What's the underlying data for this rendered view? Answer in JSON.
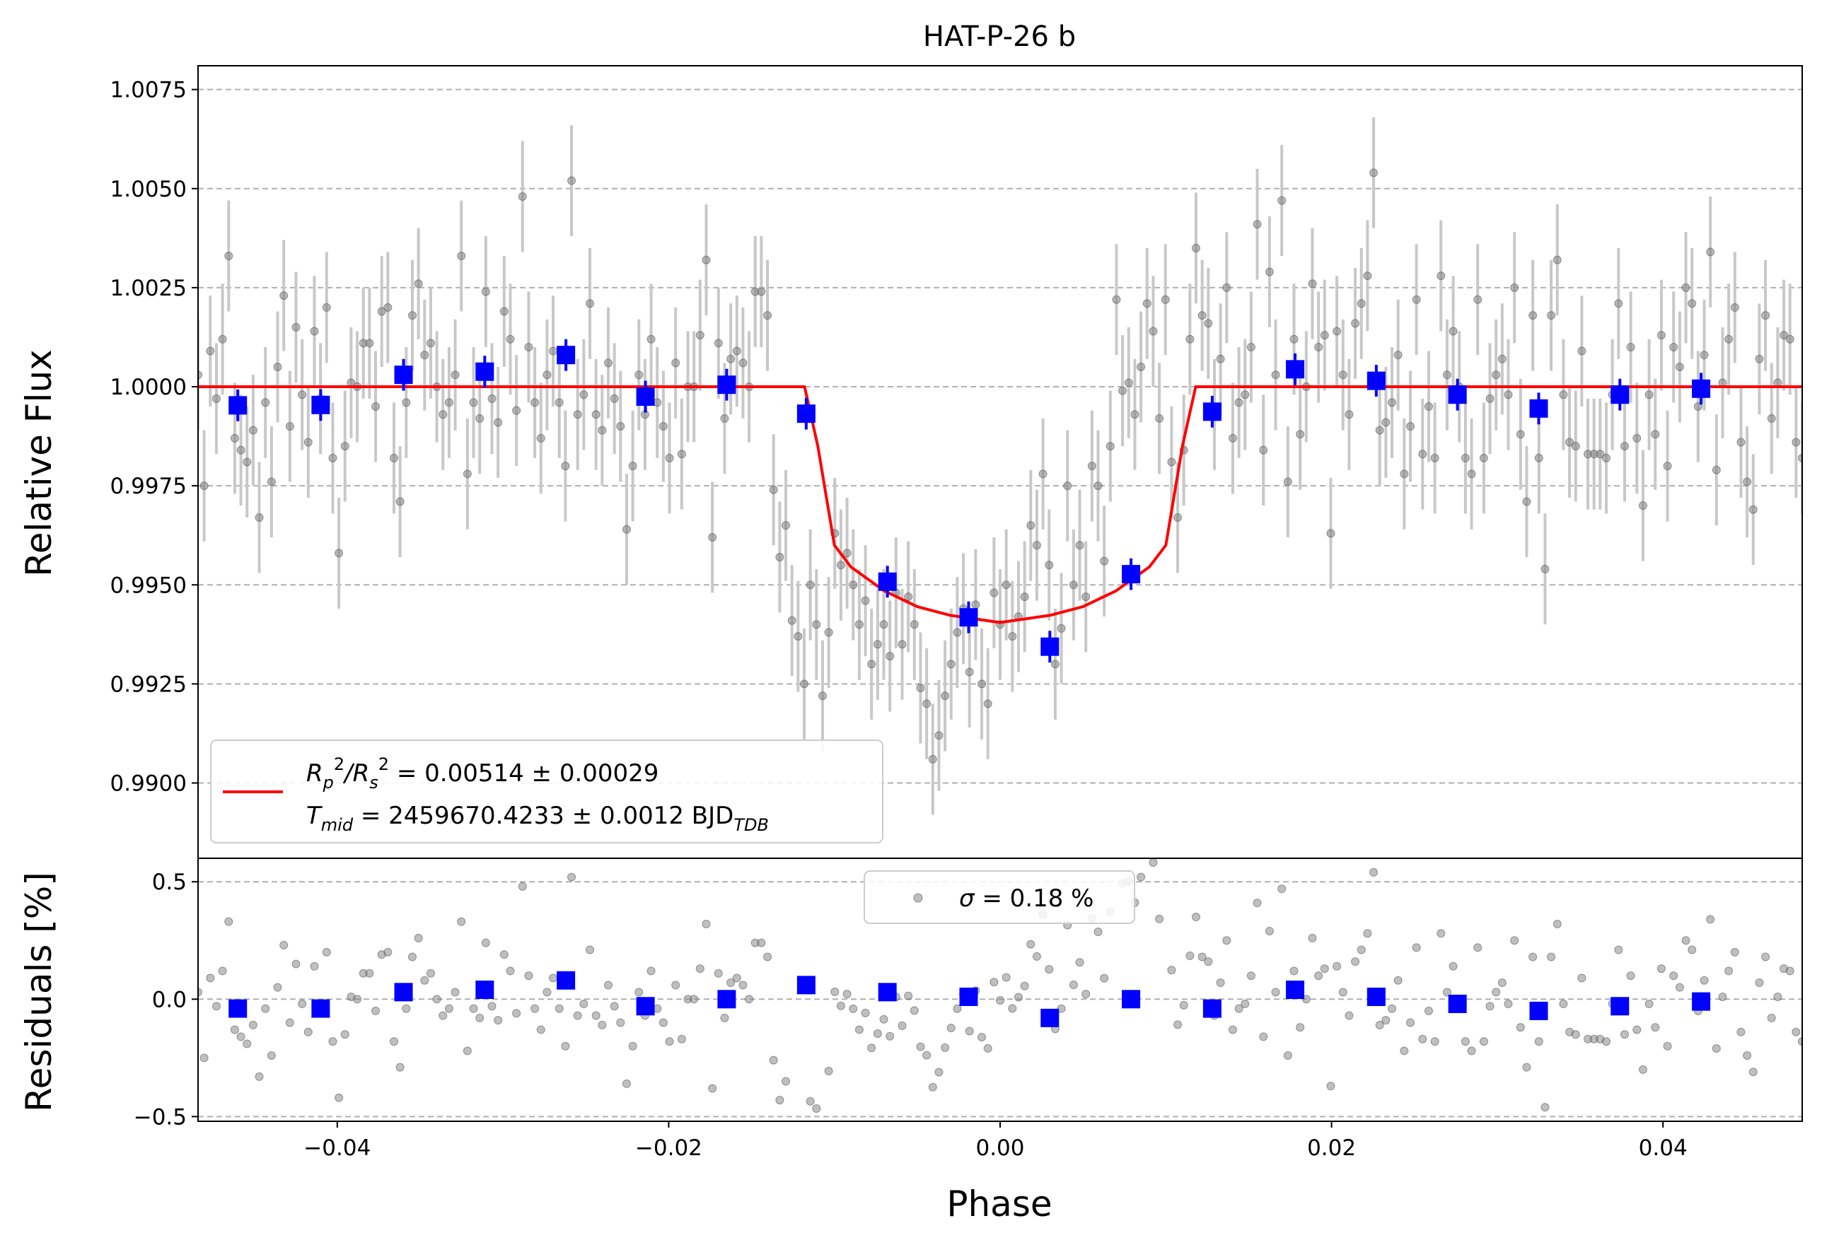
{
  "chart_data": [
    {
      "type": "scatter",
      "title": "HAT-P-26 b",
      "xlabel": "",
      "ylabel": "Relative Flux",
      "xlim": [
        -0.0484,
        0.0484
      ],
      "ylim": [
        0.9881,
        1.0081
      ],
      "grid": "horizontal dashed",
      "yticks": [
        "0.9900",
        "0.9925",
        "0.9950",
        "0.9975",
        "1.0000",
        "1.0025",
        "1.0050",
        "1.0075"
      ],
      "ytick_values": [
        0.99,
        0.9925,
        0.995,
        0.9975,
        1.0,
        1.0025,
        1.005,
        1.0075
      ],
      "legend": {
        "placement": "lower-left",
        "entries": [
          {
            "name": "R_p^2/R_s^2 = 0.00514 ± 0.00029",
            "color": "#ff0000"
          },
          {
            "name": "T_mid = 2459670.4233 ± 0.0012 BJD_TDB",
            "color": "#ff0000"
          }
        ],
        "line1": {
          "prefix": "R",
          "sub1": "p",
          "sup1": "2",
          "slash": "/R",
          "sub2": "s",
          "sup2": "2",
          "rest": " = 0.00514 ± 0.00029"
        },
        "line2": {
          "prefix": "T",
          "sub": "mid",
          "rest": " = 2459670.4233 ± 0.0012 BJD",
          "sub2": "TDB"
        }
      },
      "model": {
        "name": "transit model",
        "color": "#ff0000",
        "x": [
          -0.0484,
          -0.0118,
          -0.011,
          -0.01,
          -0.009,
          -0.007,
          -0.005,
          -0.003,
          0.0,
          0.003,
          0.005,
          0.007,
          0.009,
          0.01,
          0.011,
          0.0118,
          0.0484
        ],
        "y": [
          1.0,
          1.0,
          0.9985,
          0.996,
          0.99545,
          0.99485,
          0.99445,
          0.99423,
          0.99405,
          0.99423,
          0.99445,
          0.99485,
          0.99545,
          0.996,
          0.9985,
          1.0,
          1.0
        ]
      },
      "raw_series": {
        "name": "raw data",
        "color": "#808080",
        "errorbar_color": "#c8c8c8",
        "errorbar_halfwidth": 0.0014,
        "x_start": -0.0484,
        "x_end": 0.0484,
        "points": [
          1.0003,
          0.9975,
          1.0009,
          0.9997,
          1.0012,
          1.0033,
          0.9987,
          0.9984,
          0.9981,
          0.9989,
          0.9967,
          0.9996,
          0.9976,
          1.0005,
          1.0023,
          0.999,
          1.0015,
          0.9998,
          0.9986,
          1.0014,
          0.9997,
          1.002,
          0.9982,
          0.9958,
          0.9985,
          1.0001,
          1.0,
          1.0011,
          1.0011,
          0.9995,
          1.0019,
          1.002,
          0.9982,
          0.9971,
          0.9996,
          1.0018,
          1.0026,
          1.0008,
          1.0011,
          1.0,
          0.9993,
          0.9996,
          1.0003,
          1.0033,
          0.9978,
          0.9996,
          0.9992,
          1.0024,
          0.9997,
          0.9991,
          1.0019,
          1.0012,
          0.9994,
          1.0048,
          1.001,
          0.9996,
          0.9987,
          1.0003,
          1.0009,
          0.9996,
          0.998,
          1.0052,
          0.9993,
          0.9998,
          1.0021,
          0.9993,
          0.9989,
          1.0006,
          0.9997,
          0.999,
          0.9964,
          0.998,
          1.0003,
          0.9993,
          1.0012,
          0.9996,
          0.999,
          0.9982,
          1.0006,
          0.9983,
          1.0,
          1.0,
          1.0013,
          1.0032,
          0.9962,
          1.0011,
          0.9992,
          1.0007,
          1.0009,
          1.0006,
          1.0,
          1.0024,
          1.0024,
          1.0018,
          0.9974,
          0.9957,
          0.9965,
          0.9941,
          0.9937,
          0.9925,
          0.995,
          0.994,
          0.9922,
          0.9938,
          0.9963,
          0.9955,
          0.9958,
          0.995,
          0.994,
          0.9946,
          0.993,
          0.9935,
          0.994,
          0.9932,
          0.9948,
          0.9935,
          0.9947,
          0.994,
          0.9924,
          0.992,
          0.9906,
          0.9912,
          0.9922,
          0.993,
          0.9938,
          0.9944,
          0.9928,
          0.9945,
          0.9925,
          0.992,
          0.9948,
          0.994,
          0.995,
          0.9937,
          0.9942,
          0.9947,
          0.9965,
          0.996,
          0.9978,
          0.9955,
          0.993,
          0.9939,
          0.9975,
          0.995,
          0.996,
          0.9947,
          0.998,
          0.9975,
          0.9956,
          0.9985,
          1.0022,
          0.9999,
          1.0001,
          0.9993,
          1.0005,
          1.0021,
          1.0014,
          0.9992,
          1.0022,
          0.9981,
          0.9967,
          0.9984,
          1.0012,
          1.0035,
          1.0018,
          1.0016,
          0.9993,
          1.0007,
          1.0025,
          0.9987,
          0.9996,
          0.9998,
          1.001,
          1.0041,
          0.9984,
          1.0029,
          1.0003,
          1.0047,
          0.9976,
          1.0012,
          0.9988,
          1.0,
          1.0026,
          1.001,
          1.0013,
          0.9963,
          1.0014,
          1.0003,
          0.9993,
          1.0016,
          1.0021,
          1.0028,
          1.0054,
          0.9989,
          0.9991,
          0.9996,
          1.0008,
          0.9978,
          0.999,
          1.0022,
          0.9983,
          0.9995,
          0.9982,
          1.0028,
          1.0003,
          1.0014,
          1.0,
          0.9982,
          0.9978,
          1.0022,
          0.9982,
          0.9997,
          1.0003,
          1.0007,
          0.9998,
          1.0025,
          0.9988,
          0.9971,
          1.0018,
          0.9982,
          0.9954,
          1.0018,
          1.0032,
          0.9998,
          0.9986,
          0.9985,
          1.0009,
          0.9983,
          0.9983,
          0.9983,
          0.9982,
          0.9998,
          1.0021,
          0.9985,
          1.001,
          0.9987,
          0.997,
          0.9998,
          0.9988,
          1.0013,
          0.998,
          1.001,
          1.0005,
          1.0025,
          1.0021,
          0.9995,
          1.0008,
          1.0034,
          0.9979,
          1.0001,
          1.0012,
          1.002,
          0.9986,
          0.9976,
          0.9969,
          1.0007,
          1.0018,
          0.9992,
          1.0001,
          1.0013,
          1.0012,
          0.9986,
          0.9982
        ]
      },
      "binned_series": {
        "name": "binned data",
        "color": "#0000ff",
        "errorbar": 0.0004,
        "x": [
          -0.046,
          -0.041,
          -0.036,
          -0.0311,
          -0.0262,
          -0.0214,
          -0.0165,
          -0.0117,
          -0.0068,
          -0.0019,
          0.003,
          0.0079,
          0.0128,
          0.0178,
          0.0227,
          0.0276,
          0.0325,
          0.0374,
          0.0423
        ],
        "y": [
          0.99953,
          0.99954,
          1.0003,
          1.00038,
          1.0008,
          0.99975,
          1.00005,
          0.99932,
          0.99508,
          0.99418,
          0.99344,
          0.99527,
          0.99937,
          1.00044,
          1.00015,
          0.9998,
          0.99945,
          0.9998,
          0.99995
        ]
      }
    },
    {
      "type": "scatter",
      "title": "",
      "xlabel": "Phase",
      "ylabel": "Residuals [%]",
      "xlim": [
        -0.0484,
        0.0484
      ],
      "ylim": [
        -0.52,
        0.6
      ],
      "grid": "horizontal dashed",
      "yticks": [
        "−0.5",
        "0.0",
        "0.5"
      ],
      "ytick_values": [
        -0.5,
        0.0,
        0.5
      ],
      "xticks": [
        "−0.04",
        "−0.02",
        "0.00",
        "0.02",
        "0.04"
      ],
      "xtick_values": [
        -0.04,
        -0.02,
        0.0,
        0.02,
        0.04
      ],
      "legend": {
        "placement": "top-center",
        "entries": [
          {
            "name": "σ = 0.18 %",
            "color": "#808080"
          }
        ],
        "sigma_symbol": "σ",
        "sigma_rest": " = 0.18 %"
      },
      "residual_series": {
        "name": "residuals",
        "color": "#808080",
        "note_unit": "percent",
        "from": "raw_series minus model"
      },
      "binned_residuals": {
        "name": "binned residuals",
        "color": "#0000ff",
        "x": [
          -0.046,
          -0.041,
          -0.036,
          -0.0311,
          -0.0262,
          -0.0214,
          -0.0165,
          -0.0117,
          -0.0068,
          -0.0019,
          0.003,
          0.0079,
          0.0128,
          0.0178,
          0.0227,
          0.0276,
          0.0325,
          0.0374,
          0.0423
        ],
        "y": [
          -0.04,
          -0.04,
          0.03,
          0.04,
          0.08,
          -0.03,
          0.0,
          0.06,
          0.03,
          0.01,
          -0.08,
          0.0,
          -0.04,
          0.04,
          0.01,
          -0.02,
          -0.05,
          -0.03,
          -0.01
        ]
      }
    }
  ]
}
